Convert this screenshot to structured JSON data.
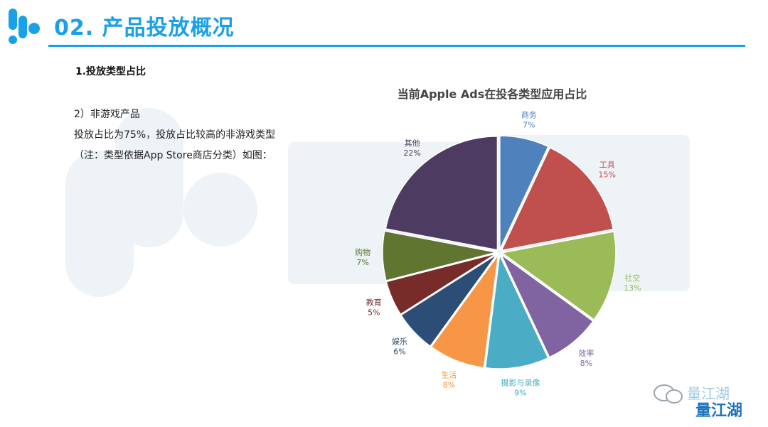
{
  "header": {
    "title": "02. 产品投放概况"
  },
  "section": {
    "heading": "1.投放类型占比",
    "line1": "2）非游戏产品",
    "line2": "投放占比为75%，投放占比较高的非游戏类型",
    "line3": "（注：类型依据App Store商店分类）如图："
  },
  "brand": {
    "name": "量江湖",
    "name_bold": "量江湖"
  },
  "colors": {
    "accent": "#1aa0e8",
    "watermark": "#eef3f8"
  },
  "chart_data": {
    "type": "pie",
    "title": "当前Apple Ads在投各类型应用占比",
    "slices": [
      {
        "label": "商务",
        "pct": "7%",
        "value": 7,
        "color": "#4f81bd",
        "text_color": "#4f81bd"
      },
      {
        "label": "工具",
        "pct": "15%",
        "value": 15,
        "color": "#c0504d",
        "text_color": "#c0504d"
      },
      {
        "label": "社交",
        "pct": "13%",
        "value": 13,
        "color": "#9bbb59",
        "text_color": "#9bbb59"
      },
      {
        "label": "效率",
        "pct": "8%",
        "value": 8,
        "color": "#8064a2",
        "text_color": "#8064a2"
      },
      {
        "label": "摄影与录像",
        "pct": "9%",
        "value": 9,
        "color": "#4bacc6",
        "text_color": "#4bacc6"
      },
      {
        "label": "生活",
        "pct": "8%",
        "value": 8,
        "color": "#f79646",
        "text_color": "#f79646"
      },
      {
        "label": "娱乐",
        "pct": "6%",
        "value": 6,
        "color": "#2c4d75",
        "text_color": "#2c4d75"
      },
      {
        "label": "教育",
        "pct": "5%",
        "value": 5,
        "color": "#772c2a",
        "text_color": "#772c2a"
      },
      {
        "label": "购物",
        "pct": "7%",
        "value": 7,
        "color": "#5f7530",
        "text_color": "#5f7530"
      },
      {
        "label": "其他",
        "pct": "22%",
        "value": 22,
        "color": "#4d3b62",
        "text_color": "#4d3b62"
      }
    ]
  }
}
